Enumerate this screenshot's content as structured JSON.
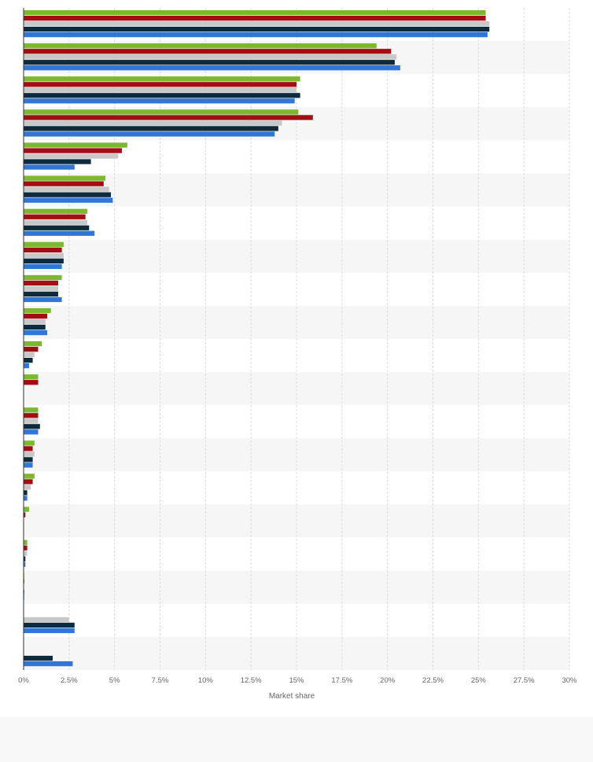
{
  "chart_data": {
    "type": "bar",
    "orientation": "horizontal",
    "xlabel": "Market share",
    "xlim": [
      0,
      30
    ],
    "tick_labels": [
      "0%",
      "2.5%",
      "5%",
      "7.5%",
      "10%",
      "12.5%",
      "15%",
      "17.5%",
      "20%",
      "22.5%",
      "25%",
      "27.5%",
      "30%"
    ],
    "ticks": [
      0,
      2.5,
      5,
      7.5,
      10,
      12.5,
      15,
      17.5,
      20,
      22.5,
      25,
      27.5,
      30
    ],
    "grid": true,
    "category_count": 20,
    "series": [
      {
        "color": "#7cb82f",
        "values": [
          25.4,
          19.4,
          15.2,
          15.1,
          5.7,
          4.5,
          3.5,
          2.2,
          2.1,
          1.5,
          1.0,
          0.8,
          0.8,
          0.6,
          0.6,
          0.3,
          0.2,
          0.0,
          null,
          null
        ]
      },
      {
        "color": "#a30e15",
        "values": [
          25.4,
          20.2,
          15.0,
          15.9,
          5.4,
          4.4,
          3.4,
          2.1,
          1.9,
          1.3,
          0.8,
          0.8,
          0.8,
          0.5,
          0.5,
          0.1,
          0.2,
          0.0,
          null,
          null
        ]
      },
      {
        "color": "#c8c8c8",
        "values": [
          25.6,
          20.5,
          15.0,
          14.2,
          5.2,
          4.7,
          3.5,
          2.2,
          1.9,
          1.2,
          0.6,
          null,
          0.8,
          0.6,
          0.4,
          null,
          0.2,
          null,
          2.5,
          null
        ]
      },
      {
        "color": "#0e2a3d",
        "values": [
          25.6,
          20.4,
          15.2,
          14.0,
          3.7,
          4.8,
          3.6,
          2.2,
          1.9,
          1.2,
          0.5,
          null,
          0.9,
          0.5,
          0.2,
          null,
          0.1,
          0.0,
          2.8,
          1.6
        ]
      },
      {
        "color": "#2f76d6",
        "values": [
          25.5,
          20.7,
          14.9,
          13.8,
          2.8,
          4.9,
          3.9,
          2.1,
          2.1,
          1.3,
          0.3,
          null,
          0.8,
          0.5,
          0.2,
          null,
          0.1,
          0.0,
          2.8,
          2.7
        ]
      }
    ]
  }
}
